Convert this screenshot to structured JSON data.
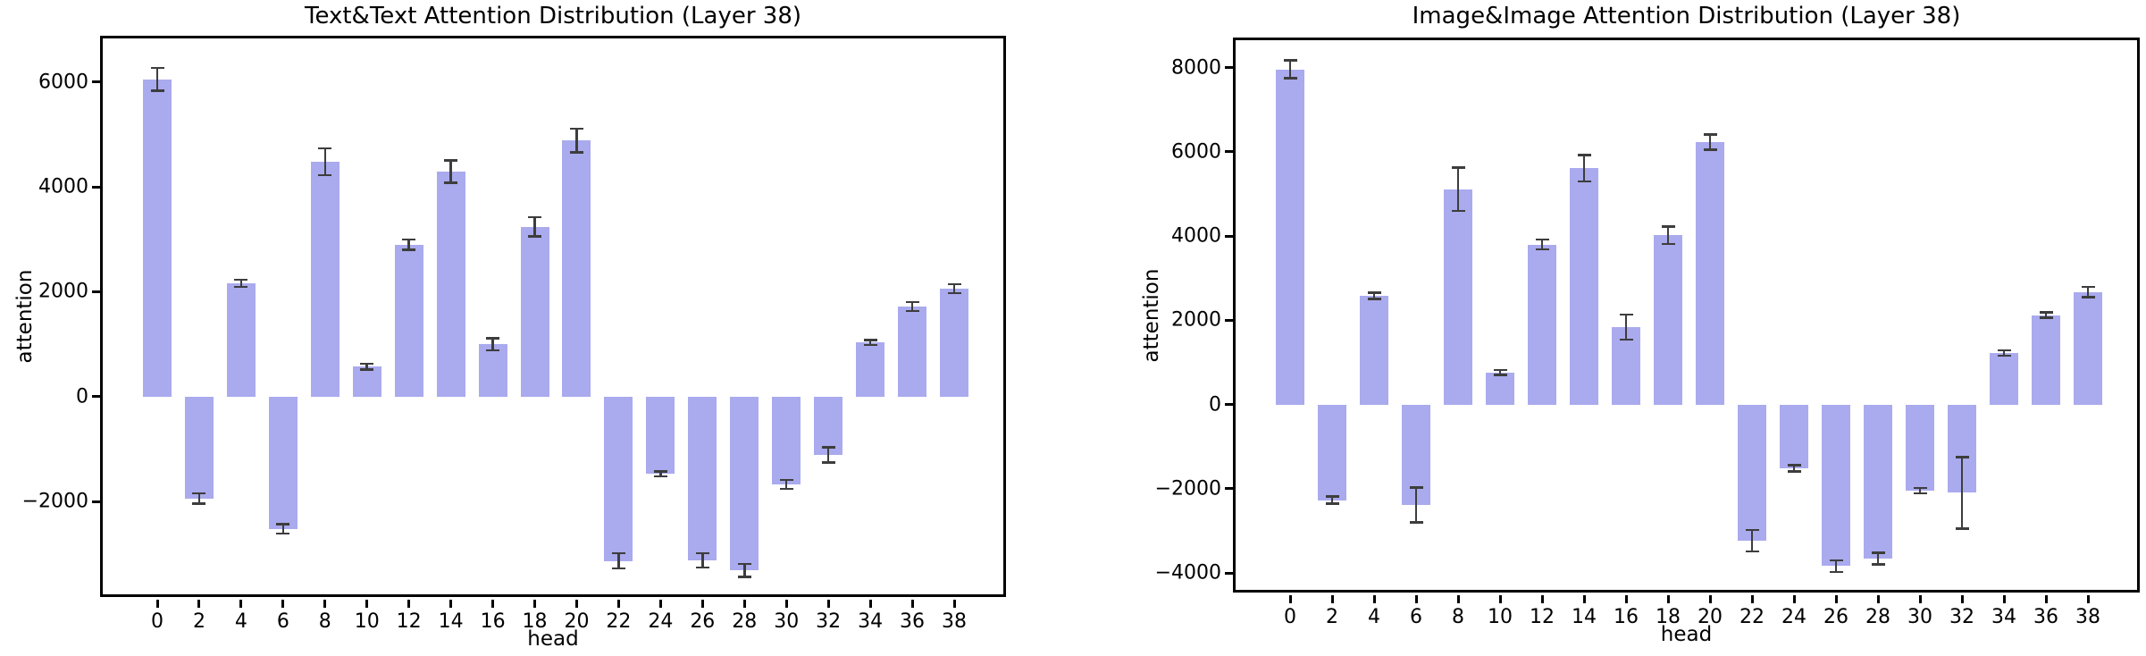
{
  "figure": {
    "background": "#ffffff",
    "bar_color": "#aaaaee",
    "error_bar_color": "#3d3d3d",
    "axis_color": "#000000"
  },
  "chart_data": [
    {
      "type": "bar",
      "title": "Text&Text Attention Distribution (Layer 38)",
      "xlabel": "head",
      "ylabel": "attention",
      "grid": false,
      "legend": null,
      "categories": [
        "0",
        "2",
        "4",
        "6",
        "8",
        "10",
        "12",
        "14",
        "16",
        "18",
        "20",
        "22",
        "24",
        "26",
        "28",
        "30",
        "32",
        "34",
        "36",
        "38"
      ],
      "values": [
        6050,
        -1940,
        2160,
        -2520,
        4480,
        570,
        2900,
        4290,
        1000,
        3240,
        4880,
        -3130,
        -1470,
        -3120,
        -3310,
        -1670,
        -1110,
        1030,
        1720,
        2060
      ],
      "errors": [
        220,
        100,
        70,
        90,
        260,
        60,
        100,
        220,
        120,
        190,
        230,
        150,
        50,
        140,
        130,
        90,
        150,
        50,
        90,
        90
      ],
      "yticks": [
        6000,
        4000,
        2000,
        0,
        -2000
      ],
      "ytick_labels": [
        "6000",
        "4000",
        "2000",
        "0",
        "−2000"
      ],
      "ylim": [
        -3870,
        6830
      ],
      "bar_color": "#aaaaee"
    },
    {
      "type": "bar",
      "title": "Image&Image Attention Distribution (Layer 38)",
      "xlabel": "head",
      "ylabel": "attention",
      "grid": false,
      "legend": null,
      "categories": [
        "0",
        "2",
        "4",
        "6",
        "8",
        "10",
        "12",
        "14",
        "16",
        "18",
        "20",
        "22",
        "24",
        "26",
        "28",
        "30",
        "32",
        "34",
        "36",
        "38"
      ],
      "values": [
        7960,
        -2270,
        2580,
        -2390,
        5110,
        760,
        3800,
        5610,
        1840,
        4020,
        6230,
        -3240,
        -1520,
        -3840,
        -3660,
        -2050,
        -2100,
        1220,
        2120,
        2670
      ],
      "errors": [
        220,
        90,
        80,
        420,
        520,
        60,
        120,
        320,
        300,
        210,
        190,
        260,
        80,
        140,
        140,
        70,
        850,
        70,
        70,
        130
      ],
      "yticks": [
        8000,
        6000,
        4000,
        2000,
        0,
        -2000,
        -4000
      ],
      "ytick_labels": [
        "8000",
        "6000",
        "4000",
        "2000",
        "0",
        "−2000",
        "−4000"
      ],
      "ylim": [
        -4530,
        8650
      ],
      "bar_color": "#aaaaee"
    }
  ]
}
